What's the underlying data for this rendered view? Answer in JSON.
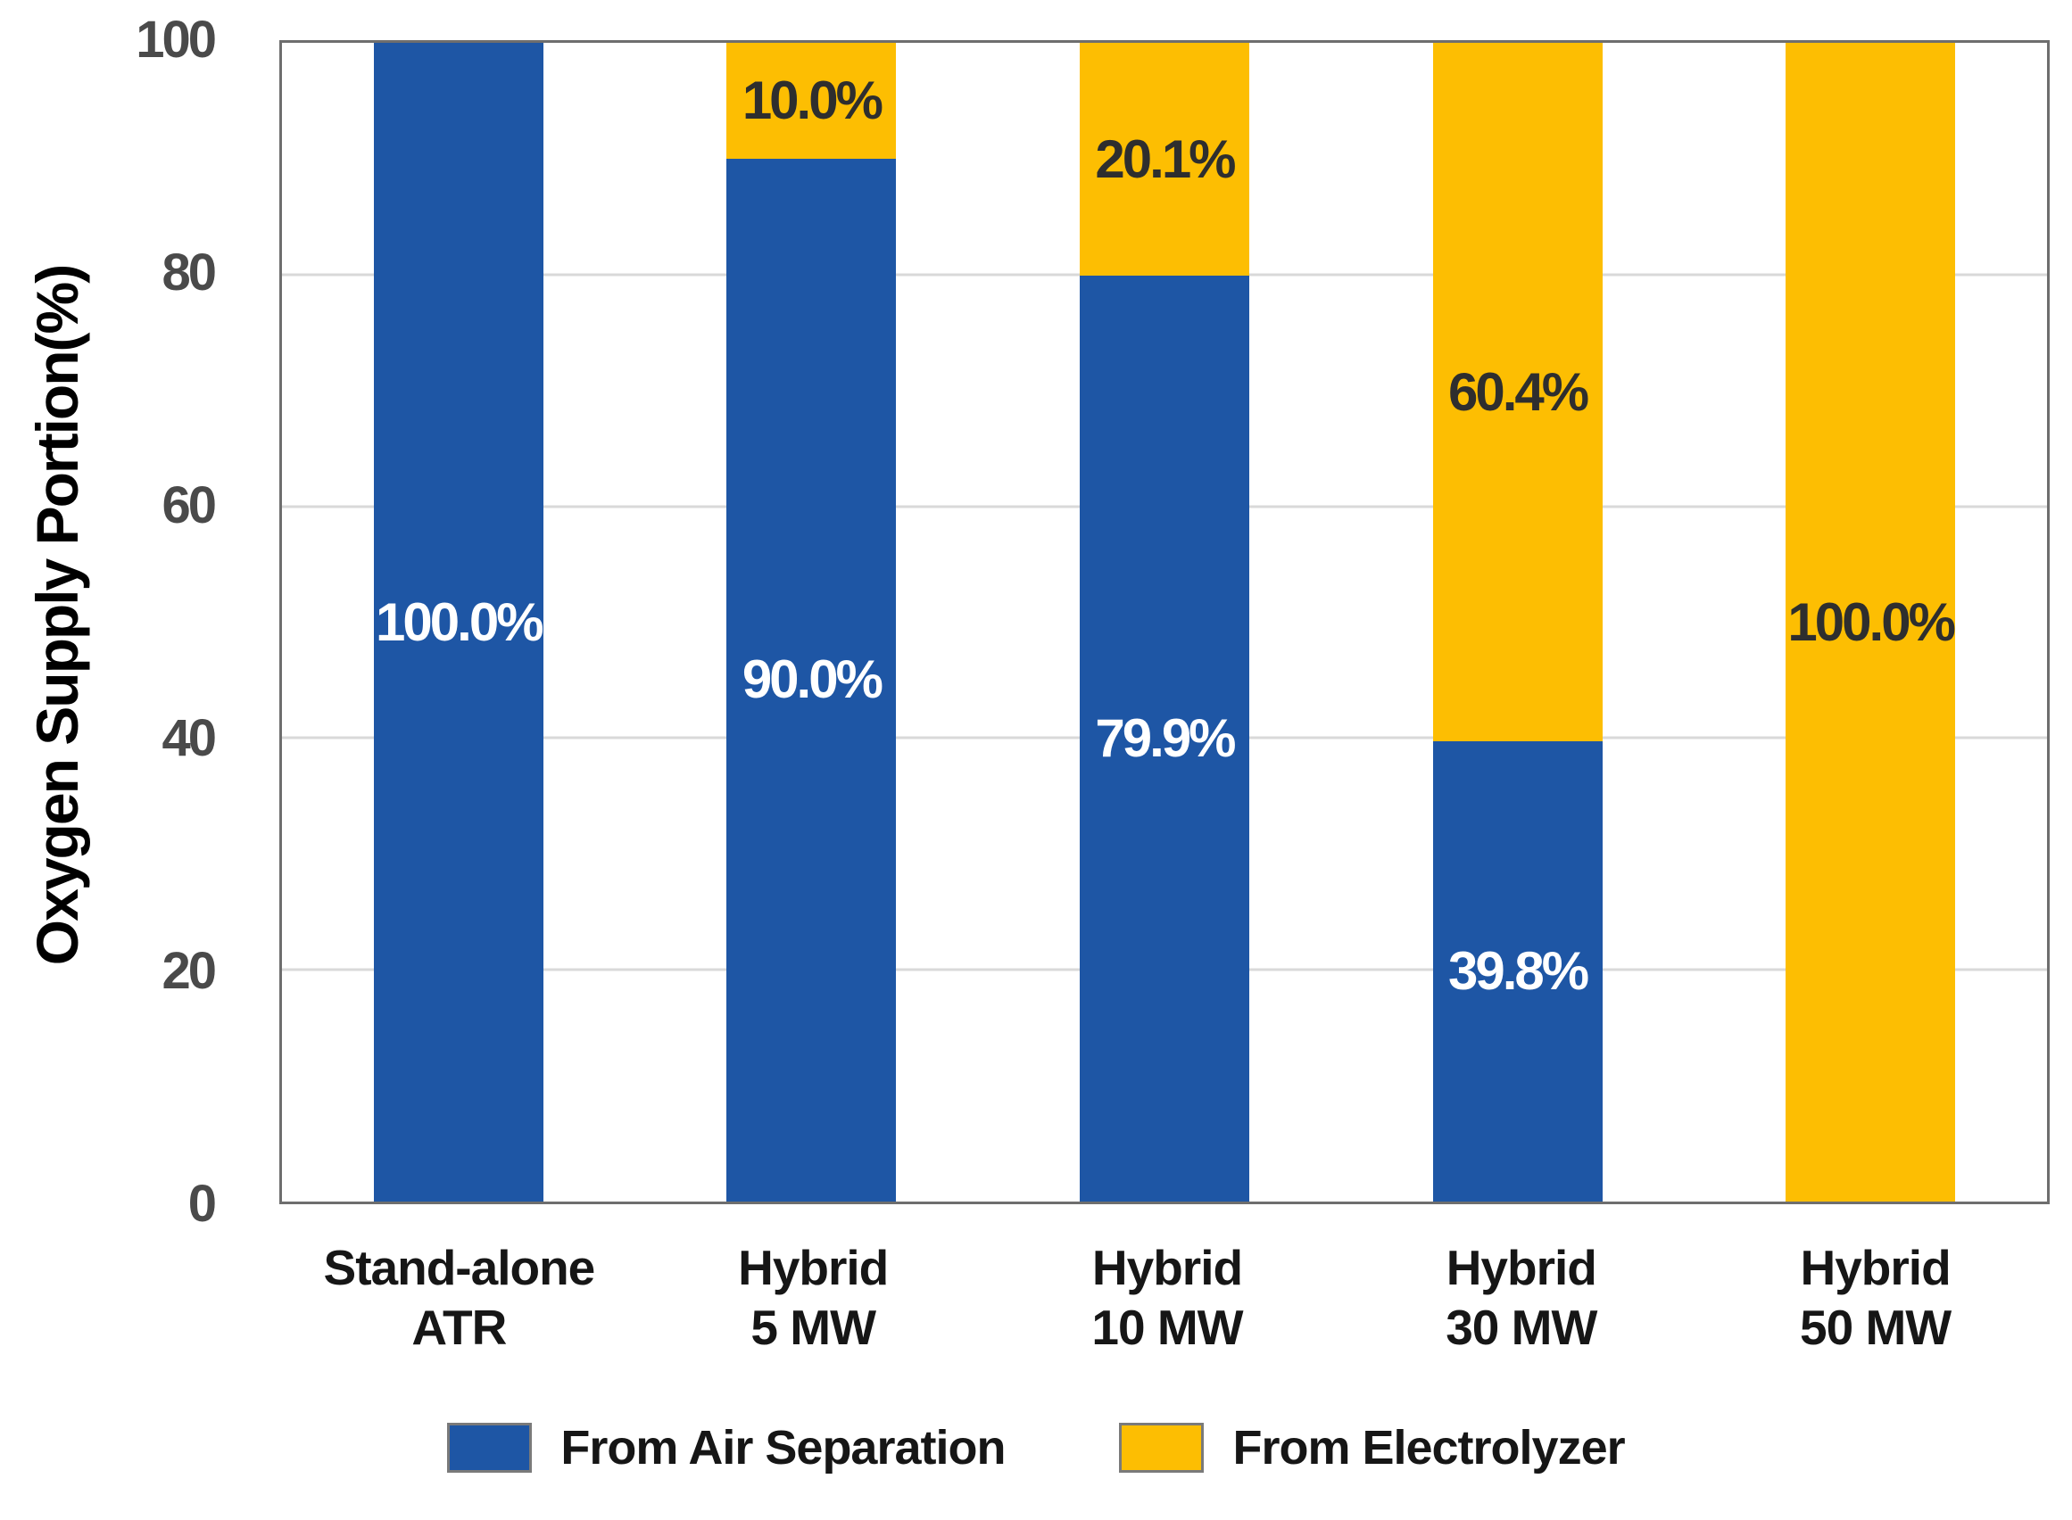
{
  "chart_data": {
    "type": "bar",
    "stacked": true,
    "title": "",
    "xlabel": "",
    "ylabel": "Oxygen Supply Portion(%)",
    "ylim": [
      0,
      100
    ],
    "yticks": [
      0,
      20,
      40,
      60,
      80,
      100
    ],
    "grid": "horizontal",
    "legend_position": "bottom",
    "categories": [
      "Stand-alone ATR",
      "Hybrid 5 MW",
      "Hybrid 10 MW",
      "Hybrid 30 MW",
      "Hybrid 50 MW"
    ],
    "category_lines": [
      [
        "Stand-alone",
        "ATR"
      ],
      [
        "Hybrid",
        "5 MW"
      ],
      [
        "Hybrid",
        "10 MW"
      ],
      [
        "Hybrid",
        "30 MW"
      ],
      [
        "Hybrid",
        "50 MW"
      ]
    ],
    "series": [
      {
        "name": "From Air Separation",
        "color": "#1e56a5",
        "label_color": "#ffffff",
        "values": [
          100.0,
          90.0,
          79.9,
          39.8,
          0.0
        ],
        "value_labels": [
          "100.0%",
          "90.0%",
          "79.9%",
          "39.8%",
          ""
        ]
      },
      {
        "name": "From Electrolyzer",
        "color": "#fdbe02",
        "label_color": "#2e2e2e",
        "values": [
          0.0,
          10.0,
          20.1,
          60.4,
          100.0
        ],
        "value_labels": [
          "",
          "10.0%",
          "20.1%",
          "60.4%",
          "100.0%"
        ]
      }
    ]
  },
  "style": {
    "background": "#ffffff",
    "frame_color": "#6e6e6e",
    "gridline_color": "#d9d9d9",
    "tick_label_color": "#4a4a4a",
    "text_color": "#161616"
  }
}
